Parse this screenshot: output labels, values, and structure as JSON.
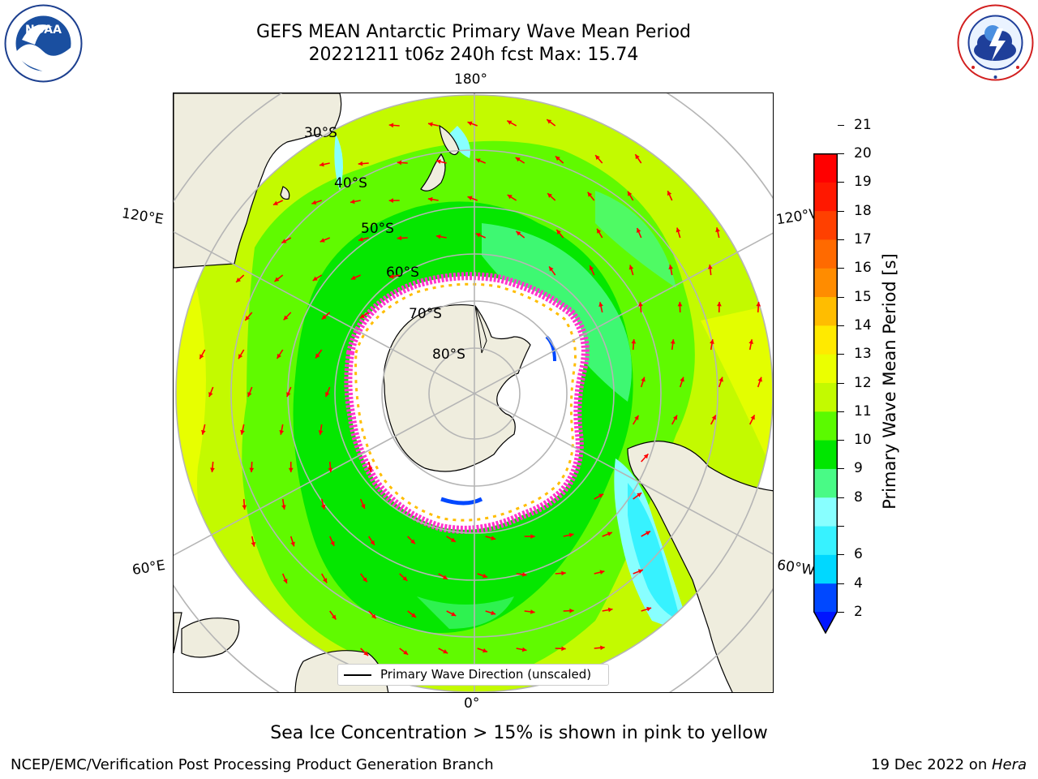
{
  "title": {
    "line1": "GEFS MEAN Antarctic Primary Wave Mean Period",
    "line2": "20221211 t06z 240h fcst   Max: 15.74"
  },
  "logos": {
    "left": {
      "text": "NOAA",
      "ring_text": "NATIONAL OCEANIC AND ATMOSPHERIC ADMINISTRATION · U.S. DEPARTMENT OF COMMERCE"
    },
    "right": {
      "ring_text": "NATIONAL WEATHER SERVICE"
    }
  },
  "map": {
    "projection": "south polar stereographic",
    "lon_labels": {
      "top": "180°",
      "bottom": "0°",
      "upper_left": "120°E",
      "upper_right": "120°W",
      "lower_left": "60°E",
      "lower_right": "60°W"
    },
    "lat_labels": [
      "30°S",
      "40°S",
      "50°S",
      "60°S",
      "70°S",
      "80°S"
    ],
    "land_color": "#efedde",
    "ice_color": "#ffffff",
    "ocean_outside_color": "#ffffff",
    "gridline_color": "#b5b5b5",
    "arrow_color": "#ff0000"
  },
  "colorbar": {
    "label": "Primary Wave Mean Period [s]",
    "ticks": [
      "2",
      "4",
      "6",
      "7",
      "8",
      "9",
      "10",
      "11",
      "12",
      "13",
      "14",
      "15",
      "16",
      "17",
      "18",
      "19",
      "20",
      "21"
    ],
    "tick_labels_visible": [
      "2",
      "4",
      "6",
      "8",
      "9",
      "10",
      "11",
      "12",
      "13",
      "14",
      "15",
      "16",
      "17",
      "18",
      "19",
      "20",
      "21"
    ],
    "colors": [
      "#0048ff",
      "#00d8ff",
      "#37f2ff",
      "#88ffff",
      "#49fa86",
      "#00e600",
      "#5bfa00",
      "#c3fa00",
      "#ebff00",
      "#ffea00",
      "#ffbd00",
      "#ff8c00",
      "#ff6a00",
      "#ff4000",
      "#ff1800",
      "#ff0000"
    ],
    "extend_color": "#0015ff"
  },
  "legend": {
    "label": "Primary Wave Direction (unscaled)"
  },
  "note": "Sea Ice Concentration > 15% is shown in pink to yellow",
  "footer": {
    "left": "NCEP/EMC/Verification Post Processing Product Generation Branch",
    "right_prefix": "19 Dec 2022 on ",
    "right_host": "Hera"
  }
}
